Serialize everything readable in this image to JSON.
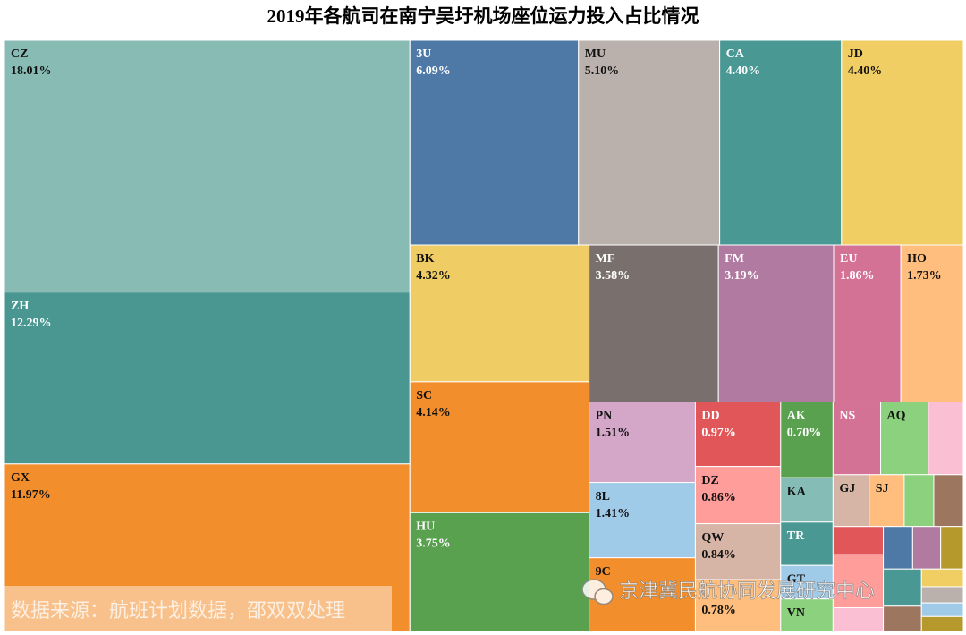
{
  "chart_data": {
    "type": "treemap",
    "title": "2019年各航司在南宁吴圩机场座位运力投入占比情况",
    "source": "数据来源：航班计划数据，邵双双处理",
    "watermark": "京津冀民航协同发展研究中心",
    "items": [
      {
        "name": "CZ",
        "value": 18.01,
        "value_label": "18.01%",
        "color": "#88bbb4"
      },
      {
        "name": "ZH",
        "value": 12.29,
        "value_label": "12.29%",
        "color": "#4a9791"
      },
      {
        "name": "GX",
        "value": 11.97,
        "value_label": "11.97%",
        "color": "#f28e2c"
      },
      {
        "name": "3U",
        "value": 6.09,
        "value_label": "6.09%",
        "color": "#4e79a7"
      },
      {
        "name": "MU",
        "value": 5.1,
        "value_label": "5.10%",
        "color": "#bab0ac"
      },
      {
        "name": "CA",
        "value": 4.4,
        "value_label": "4.40%",
        "color": "#499894"
      },
      {
        "name": "JD",
        "value": 4.4,
        "value_label": "4.40%",
        "color": "#f1ce63"
      },
      {
        "name": "BK",
        "value": 4.32,
        "value_label": "4.32%",
        "color": "#f0cd64"
      },
      {
        "name": "SC",
        "value": 4.14,
        "value_label": "4.14%",
        "color": "#f28e2b"
      },
      {
        "name": "HU",
        "value": 3.75,
        "value_label": "3.75%",
        "color": "#59a14f"
      },
      {
        "name": "MF",
        "value": 3.58,
        "value_label": "3.58%",
        "color": "#79706e"
      },
      {
        "name": "FM",
        "value": 3.19,
        "value_label": "3.19%",
        "color": "#b07aa1"
      },
      {
        "name": "EU",
        "value": 1.86,
        "value_label": "1.86%",
        "color": "#d37295"
      },
      {
        "name": "HO",
        "value": 1.73,
        "value_label": "1.73%",
        "color": "#ffbe7d"
      },
      {
        "name": "PN",
        "value": 1.51,
        "value_label": "1.51%",
        "color": "#d4a6c8"
      },
      {
        "name": "8L",
        "value": 1.41,
        "value_label": "1.41%",
        "color": "#a0cbe8"
      },
      {
        "name": "9C",
        "value": 1.38,
        "value_label": null,
        "color": "#f28e2b"
      },
      {
        "name": "DD",
        "value": 0.97,
        "value_label": "0.97%",
        "color": "#e15759"
      },
      {
        "name": "DZ",
        "value": 0.86,
        "value_label": "0.86%",
        "color": "#ff9d9a"
      },
      {
        "name": "QW",
        "value": 0.84,
        "value_label": "0.84%",
        "color": "#d7b5a6"
      },
      {
        "name": null,
        "value": 0.78,
        "value_label": "0.78%",
        "color": "#ffbe7d"
      },
      {
        "name": "AK",
        "value": 0.7,
        "value_label": "0.70%",
        "color": "#59a14f"
      },
      {
        "name": "KA",
        "value": 0.41,
        "value_label": null,
        "color": "#86bcb6"
      },
      {
        "name": "TR",
        "value": 0.4,
        "value_label": null,
        "color": "#499894"
      },
      {
        "name": "GT",
        "value": 0.31,
        "value_label": null,
        "color": "#a0cbe8"
      },
      {
        "name": "VN",
        "value": 0.3,
        "value_label": null,
        "color": "#8cd17d"
      },
      {
        "name": "NS",
        "value": 0.61,
        "value_label": null,
        "color": "#d37295"
      },
      {
        "name": "AQ",
        "value": 0.61,
        "value_label": null,
        "color": "#8cd17d"
      },
      {
        "name": null,
        "value": 0.45,
        "value_label": null,
        "color": "#fabfd2"
      },
      {
        "name": "GJ",
        "value": 0.33,
        "value_label": null,
        "color": "#d7b5a6"
      },
      {
        "name": "SJ",
        "value": 0.32,
        "value_label": null,
        "color": "#ffbe7d"
      },
      {
        "name": null,
        "value": 0.27,
        "value_label": null,
        "color": "#8cd17d"
      },
      {
        "name": null,
        "value": 0.27,
        "value_label": null,
        "color": "#9d7660"
      },
      {
        "name": null,
        "value": 0.25,
        "value_label": null,
        "color": "#e15759"
      },
      {
        "name": null,
        "value": 0.47,
        "value_label": null,
        "color": "#ff9d9a"
      },
      {
        "name": null,
        "value": 0.21,
        "value_label": null,
        "color": "#fabfd2"
      },
      {
        "name": null,
        "value": 0.22,
        "value_label": null,
        "color": "#4e79a7"
      },
      {
        "name": null,
        "value": 0.21,
        "value_label": null,
        "color": "#b07aa1"
      },
      {
        "name": null,
        "value": 0.17,
        "value_label": null,
        "color": "#b6992d"
      },
      {
        "name": null,
        "value": 0.25,
        "value_label": null,
        "color": "#499894"
      },
      {
        "name": null,
        "value": 0.13,
        "value_label": null,
        "color": "#f1ce63"
      },
      {
        "name": null,
        "value": 0.11,
        "value_label": null,
        "color": "#b6992d"
      },
      {
        "name": null,
        "value": 0.17,
        "value_label": null,
        "color": "#9d7660"
      },
      {
        "name": null,
        "value": 0.12,
        "value_label": null,
        "color": "#bab0ac"
      },
      {
        "name": null,
        "value": 0.1,
        "value_label": null,
        "color": "#a0cbe8"
      }
    ]
  }
}
